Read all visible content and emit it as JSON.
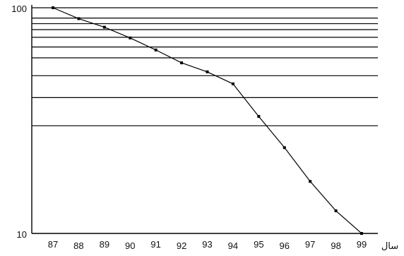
{
  "chart_data": {
    "type": "line",
    "title": "",
    "xlabel": "سال",
    "ylabel": "",
    "y_scale": "log",
    "ylim": [
      10,
      100
    ],
    "xlim": [
      87,
      99
    ],
    "y_tick_labels": [
      "100",
      "10"
    ],
    "x": [
      87,
      88,
      89,
      90,
      91,
      92,
      93,
      94,
      95,
      96,
      97,
      98,
      99
    ],
    "x_tick_labels": [
      "87",
      "88",
      "89",
      "90",
      "91",
      "92",
      "93",
      "94",
      "95",
      "96",
      "97",
      "98",
      "99"
    ],
    "gridlines_y": [
      100,
      90,
      85,
      80,
      74,
      67,
      60,
      50,
      40,
      30
    ],
    "grid": true,
    "legend": "none",
    "series": [
      {
        "values": [
          100,
          89.5,
          82,
          73.5,
          65,
          57,
          52,
          46,
          33,
          24,
          17,
          12.6,
          10
        ],
        "color": "#000000"
      }
    ]
  }
}
